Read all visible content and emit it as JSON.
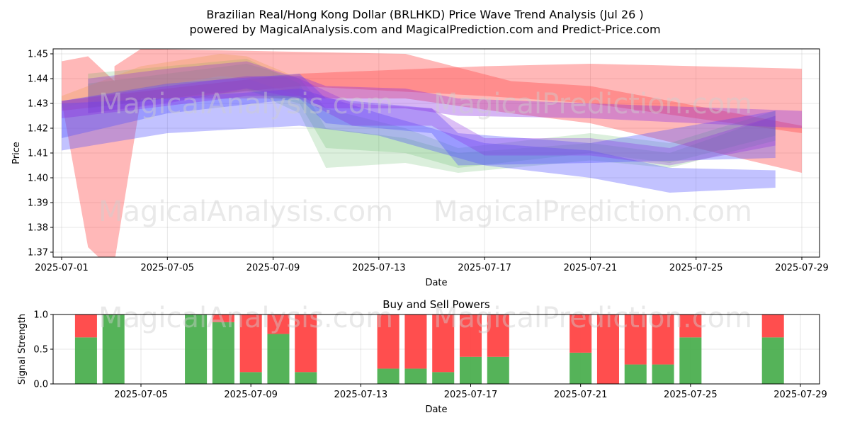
{
  "title_line1": "Brazilian Real/Hong Kong Dollar (BRLHKD) Price Wave Trend Analysis (Jul 26 )",
  "title_line2": "powered by MagicalAnalysis.com and MagicalPrediction.com and Predict-Price.com",
  "watermarks": [
    "MagicalAnalysis.com",
    "MagicalPrediction.com"
  ],
  "chart_data": [
    {
      "type": "area",
      "xlabel": "Date",
      "ylabel": "Price",
      "ylim": [
        1.368,
        1.452
      ],
      "xlim": [
        "2025-07-01",
        "2025-07-29"
      ],
      "x_ticks": [
        "2025-07-01",
        "2025-07-05",
        "2025-07-09",
        "2025-07-13",
        "2025-07-17",
        "2025-07-21",
        "2025-07-25",
        "2025-07-29"
      ],
      "y_ticks": [
        "1.37",
        "1.38",
        "1.39",
        "1.40",
        "1.41",
        "1.42",
        "1.43",
        "1.44",
        "1.45"
      ],
      "grid": true,
      "colors": {
        "red": "#ff4d4d",
        "blue": "#5050ff",
        "green": "#4caf50",
        "purple": "#8a2be2",
        "orange": "#e8a050"
      },
      "bands": [
        {
          "color": "red",
          "opacity": 0.4,
          "x": [
            "2025-07-01",
            "2025-07-02",
            "2025-07-03",
            "2025-07-03",
            "2025-07-04",
            "2025-07-14",
            "2025-07-18",
            "2025-07-21",
            "2025-07-29"
          ],
          "upper": [
            1.447,
            1.449,
            1.439,
            1.445,
            1.452,
            1.45,
            1.439,
            1.437,
            1.421
          ],
          "lower": [
            1.431,
            1.372,
            1.362,
            1.366,
            1.432,
            1.432,
            1.426,
            1.422,
            1.402
          ]
        },
        {
          "color": "red",
          "opacity": 0.4,
          "x": [
            "2025-07-01",
            "2025-07-05",
            "2025-07-10",
            "2025-07-17",
            "2025-07-21",
            "2025-07-29"
          ],
          "upper": [
            1.431,
            1.436,
            1.442,
            1.445,
            1.446,
            1.444
          ],
          "lower": [
            1.427,
            1.432,
            1.437,
            1.433,
            1.43,
            1.418
          ]
        },
        {
          "color": "green",
          "opacity": 0.2,
          "x": [
            "2025-07-02",
            "2025-07-08",
            "2025-07-10",
            "2025-07-11",
            "2025-07-14",
            "2025-07-16",
            "2025-07-21",
            "2025-07-24",
            "2025-07-28"
          ],
          "upper": [
            1.442,
            1.448,
            1.438,
            1.42,
            1.416,
            1.41,
            1.414,
            1.41,
            1.425
          ],
          "lower": [
            1.428,
            1.436,
            1.426,
            1.404,
            1.406,
            1.402,
            1.407,
            1.404,
            1.415
          ]
        },
        {
          "color": "green",
          "opacity": 0.2,
          "x": [
            "2025-07-02",
            "2025-07-08",
            "2025-07-10",
            "2025-07-11",
            "2025-07-14",
            "2025-07-16",
            "2025-07-21",
            "2025-07-24",
            "2025-07-28"
          ],
          "upper": [
            1.438,
            1.446,
            1.44,
            1.428,
            1.42,
            1.412,
            1.418,
            1.414,
            1.427
          ],
          "lower": [
            1.426,
            1.435,
            1.43,
            1.412,
            1.41,
            1.404,
            1.41,
            1.406,
            1.417
          ]
        },
        {
          "color": "orange",
          "opacity": 0.3,
          "x": [
            "2025-07-01",
            "2025-07-04",
            "2025-07-07",
            "2025-07-08",
            "2025-07-10"
          ],
          "upper": [
            1.433,
            1.445,
            1.45,
            1.449,
            1.44
          ],
          "lower": [
            1.428,
            1.436,
            1.441,
            1.44,
            1.433
          ]
        },
        {
          "color": "blue",
          "opacity": 0.35,
          "x": [
            "2025-07-01",
            "2025-07-05",
            "2025-07-10",
            "2025-07-13",
            "2025-07-17",
            "2025-07-21",
            "2025-07-24",
            "2025-07-28"
          ],
          "upper": [
            1.43,
            1.432,
            1.436,
            1.426,
            1.414,
            1.411,
            1.404,
            1.403
          ],
          "lower": [
            1.411,
            1.418,
            1.421,
            1.417,
            1.405,
            1.4,
            1.394,
            1.396
          ]
        },
        {
          "color": "blue",
          "opacity": 0.35,
          "x": [
            "2025-07-01",
            "2025-07-05",
            "2025-07-10",
            "2025-07-11",
            "2025-07-15",
            "2025-07-16",
            "2025-07-21",
            "2025-07-28"
          ],
          "upper": [
            1.431,
            1.438,
            1.442,
            1.432,
            1.428,
            1.418,
            1.414,
            1.427
          ],
          "lower": [
            1.416,
            1.426,
            1.432,
            1.422,
            1.418,
            1.405,
            1.406,
            1.408
          ]
        },
        {
          "color": "purple",
          "opacity": 0.35,
          "x": [
            "2025-07-01",
            "2025-07-05",
            "2025-07-08",
            "2025-07-10",
            "2025-07-11",
            "2025-07-14",
            "2025-07-16",
            "2025-07-21",
            "2025-07-29"
          ],
          "upper": [
            1.431,
            1.437,
            1.441,
            1.441,
            1.437,
            1.436,
            1.432,
            1.43,
            1.427
          ],
          "lower": [
            1.424,
            1.429,
            1.433,
            1.433,
            1.428,
            1.428,
            1.425,
            1.424,
            1.42
          ]
        },
        {
          "color": "purple",
          "opacity": 0.3,
          "x": [
            "2025-07-02",
            "2025-07-05",
            "2025-07-08",
            "2025-07-10",
            "2025-07-12",
            "2025-07-15",
            "2025-07-17",
            "2025-07-21",
            "2025-07-24",
            "2025-07-28"
          ],
          "upper": [
            1.44,
            1.444,
            1.447,
            1.44,
            1.43,
            1.428,
            1.416,
            1.416,
            1.412,
            1.425
          ],
          "lower": [
            1.426,
            1.43,
            1.436,
            1.432,
            1.421,
            1.421,
            1.409,
            1.409,
            1.405,
            1.413
          ]
        }
      ]
    },
    {
      "type": "bar",
      "title": "Buy and Sell Powers",
      "xlabel": "Date",
      "ylabel": "Signal Strength",
      "ylim": [
        0,
        1
      ],
      "xlim": [
        "2025-07-01",
        "2025-07-29"
      ],
      "x_ticks": [
        "2025-07-05",
        "2025-07-09",
        "2025-07-13",
        "2025-07-17",
        "2025-07-21",
        "2025-07-25",
        "2025-07-29"
      ],
      "y_ticks": [
        "0.0",
        "0.5",
        "1.0"
      ],
      "grid": true,
      "colors": {
        "buy": "#4caf50",
        "sell": "#ff4444"
      },
      "dates": [
        "2025-07-03",
        "2025-07-04",
        "2025-07-07",
        "2025-07-08",
        "2025-07-09",
        "2025-07-10",
        "2025-07-11",
        "2025-07-14",
        "2025-07-15",
        "2025-07-16",
        "2025-07-17",
        "2025-07-18",
        "2025-07-21",
        "2025-07-22",
        "2025-07-23",
        "2025-07-24",
        "2025-07-25",
        "2025-07-28"
      ],
      "buy": [
        0.67,
        1.0,
        1.0,
        0.89,
        0.17,
        0.72,
        0.17,
        0.22,
        0.22,
        0.17,
        0.39,
        0.39,
        0.45,
        0.0,
        0.28,
        0.28,
        0.67,
        0.67
      ]
    }
  ]
}
